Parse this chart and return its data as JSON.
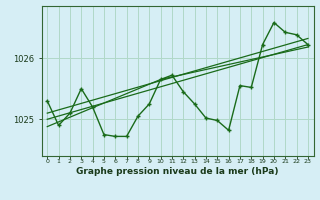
{
  "background_color": "#d6eef5",
  "grid_color": "#b0d8c8",
  "line_color": "#1a6b1a",
  "title": "Graphe pression niveau de la mer (hPa)",
  "yticks": [
    1025,
    1026
  ],
  "xlim": [
    -0.5,
    23.5
  ],
  "ylim": [
    1024.4,
    1026.85
  ],
  "hours": [
    0,
    1,
    2,
    3,
    4,
    5,
    6,
    7,
    8,
    9,
    10,
    11,
    12,
    13,
    14,
    15,
    16,
    17,
    18,
    19,
    20,
    21,
    22,
    23
  ],
  "data_line": [
    1025.3,
    1024.9,
    1025.1,
    1025.5,
    1025.2,
    1024.75,
    1024.72,
    1024.72,
    1025.05,
    1025.25,
    1025.65,
    1025.72,
    1025.45,
    1025.25,
    1025.02,
    1024.98,
    1024.82,
    1025.55,
    1025.52,
    1026.22,
    1026.58,
    1026.42,
    1026.38,
    1026.22
  ],
  "trend1_x": [
    0,
    23
  ],
  "trend1_y": [
    1025.0,
    1026.22
  ],
  "trend2_x": [
    0,
    23
  ],
  "trend2_y": [
    1025.1,
    1026.32
  ],
  "trend3_x": [
    0,
    10,
    23
  ],
  "trend3_y": [
    1024.88,
    1025.65,
    1026.18
  ]
}
